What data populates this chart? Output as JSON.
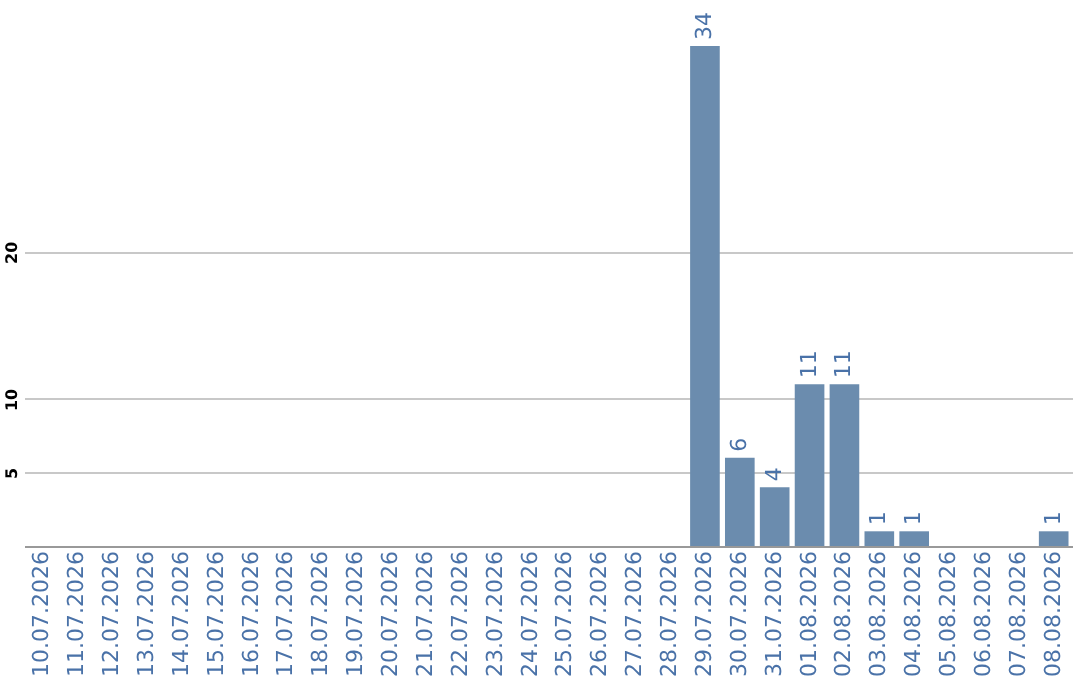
{
  "chart_data": {
    "type": "bar",
    "categories": [
      "10.07.2026",
      "11.07.2026",
      "12.07.2026",
      "13.07.2026",
      "14.07.2026",
      "15.07.2026",
      "16.07.2026",
      "17.07.2026",
      "18.07.2026",
      "19.07.2026",
      "20.07.2026",
      "21.07.2026",
      "22.07.2026",
      "23.07.2026",
      "24.07.2026",
      "25.07.2026",
      "26.07.2026",
      "27.07.2026",
      "28.07.2026",
      "29.07.2026",
      "30.07.2026",
      "31.07.2026",
      "01.08.2026",
      "02.08.2026",
      "03.08.2026",
      "04.08.2026",
      "05.08.2026",
      "06.08.2026",
      "07.08.2026",
      "08.08.2026"
    ],
    "values": [
      0,
      0,
      0,
      0,
      0,
      0,
      0,
      0,
      0,
      0,
      0,
      0,
      0,
      0,
      0,
      0,
      0,
      0,
      0,
      34,
      6,
      4,
      11,
      11,
      1,
      1,
      0,
      0,
      0,
      1
    ],
    "value_labels": [
      null,
      null,
      null,
      null,
      null,
      null,
      null,
      null,
      null,
      null,
      null,
      null,
      null,
      null,
      null,
      null,
      null,
      null,
      null,
      "34",
      "6",
      "4",
      "11",
      "11",
      "1",
      "1",
      null,
      null,
      null,
      "1"
    ],
    "color": "#6b8cae",
    "ylim": [
      0,
      34
    ],
    "yticks": [
      5,
      10,
      20
    ],
    "grid": "y"
  }
}
